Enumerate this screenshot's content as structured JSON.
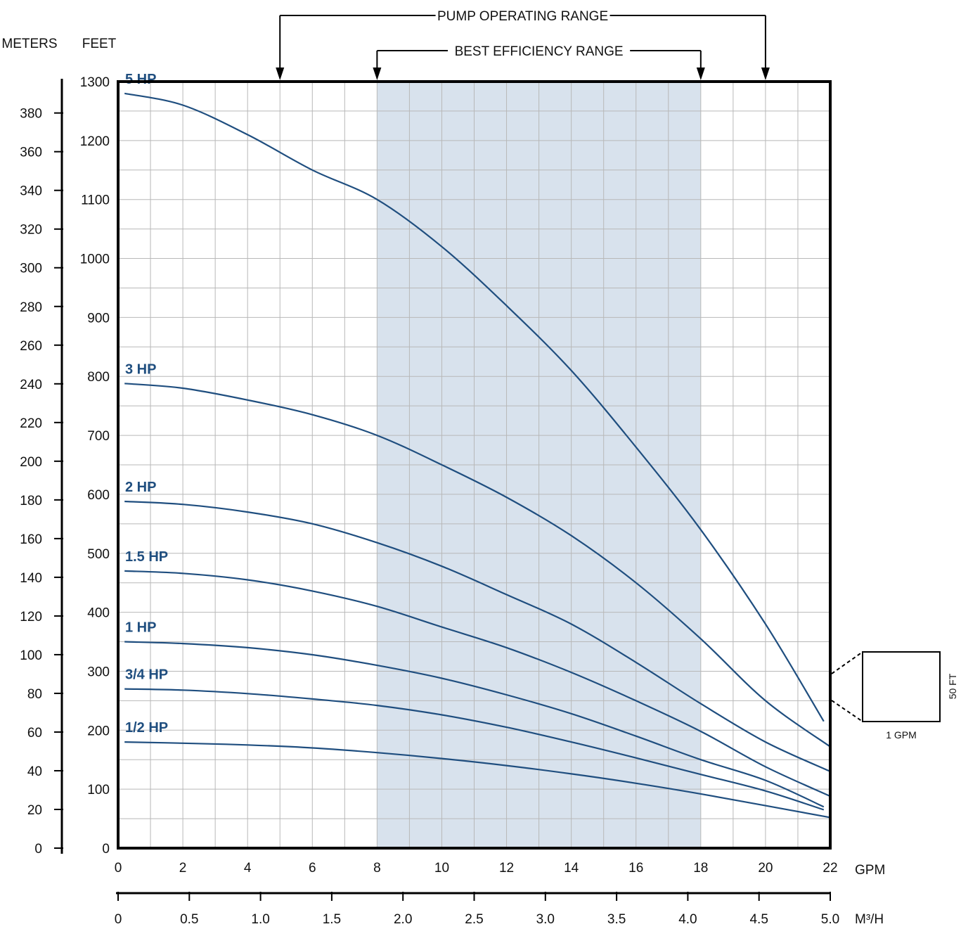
{
  "chart_data": {
    "type": "line",
    "x_unit": "GPM",
    "x2_unit": "M³/H",
    "y_unit": "FEET",
    "y2_unit": "METERS",
    "xlim": [
      0,
      22
    ],
    "ylim": [
      0,
      1300
    ],
    "x_ticks": [
      0,
      2,
      4,
      6,
      8,
      10,
      12,
      14,
      16,
      18,
      20,
      22
    ],
    "x_tick_labels": [
      "0",
      "2",
      "4",
      "6",
      "8",
      "10",
      "12",
      "14",
      "16",
      "18",
      "20",
      "22"
    ],
    "x2_ticks": [
      0,
      0.5,
      1.0,
      1.5,
      2.0,
      2.5,
      3.0,
      3.5,
      4.0,
      4.5,
      5.0
    ],
    "x2_tick_labels": [
      "0",
      "0.5",
      "1.0",
      "1.5",
      "2.0",
      "2.5",
      "3.0",
      "3.5",
      "4.0",
      "4.5",
      "5.0"
    ],
    "y_ticks": [
      0,
      100,
      200,
      300,
      400,
      500,
      600,
      700,
      800,
      900,
      1000,
      1100,
      1200,
      1300
    ],
    "y_tick_labels": [
      "0",
      "100",
      "200",
      "300",
      "400",
      "500",
      "600",
      "700",
      "800",
      "900",
      "1000",
      "1100",
      "1200",
      "1300"
    ],
    "y2_ticks": [
      0,
      20,
      40,
      60,
      80,
      100,
      120,
      140,
      160,
      180,
      200,
      220,
      240,
      260,
      280,
      300,
      320,
      340,
      360,
      380
    ],
    "y2_tick_labels": [
      "0",
      "20",
      "40",
      "60",
      "80",
      "100",
      "120",
      "140",
      "160",
      "180",
      "200",
      "220",
      "240",
      "260",
      "280",
      "300",
      "320",
      "340",
      "360",
      "380"
    ],
    "grid": true,
    "grid_minor_x": 1,
    "grid_minor_y": 50,
    "curve_color": "#1f4e7f",
    "label_color": "#1f4e7f",
    "highlight_color": "#d8e2ed",
    "ranges": [
      {
        "label": "PUMP OPERATING RANGE",
        "from": 5,
        "to": 20
      },
      {
        "label": "BEST EFFICIENCY RANGE",
        "from": 8,
        "to": 18
      }
    ],
    "highlight_range": [
      8,
      18
    ],
    "series": [
      {
        "name": "5 HP",
        "x": [
          0.2,
          2,
          4,
          6,
          8,
          10,
          12,
          14,
          16,
          18,
          20,
          21.8
        ],
        "y": [
          1280,
          1260,
          1210,
          1150,
          1100,
          1020,
          920,
          810,
          680,
          540,
          380,
          215
        ]
      },
      {
        "name": "3 HP",
        "x": [
          0.2,
          2,
          4,
          6,
          8,
          10,
          12,
          14,
          16,
          18,
          20,
          22
        ],
        "y": [
          788,
          780,
          760,
          735,
          700,
          650,
          595,
          530,
          450,
          355,
          250,
          172
        ]
      },
      {
        "name": "2 HP",
        "x": [
          0.2,
          2,
          4,
          6,
          8,
          10,
          12,
          14,
          16,
          18,
          20,
          22
        ],
        "y": [
          588,
          583,
          570,
          550,
          518,
          478,
          430,
          380,
          315,
          245,
          180,
          130
        ]
      },
      {
        "name": "1.5 HP",
        "x": [
          0.2,
          2,
          4,
          6,
          8,
          10,
          12,
          14,
          16,
          18,
          20,
          22
        ],
        "y": [
          470,
          466,
          455,
          436,
          410,
          375,
          340,
          298,
          250,
          198,
          138,
          88
        ]
      },
      {
        "name": "1 HP",
        "x": [
          0.2,
          2,
          4,
          6,
          8,
          10,
          12,
          14,
          16,
          18,
          20,
          21.8
        ],
        "y": [
          350,
          347,
          340,
          328,
          310,
          288,
          260,
          228,
          190,
          150,
          115,
          70
        ]
      },
      {
        "name": "3/4 HP",
        "x": [
          0.2,
          2,
          4,
          6,
          8,
          10,
          12,
          14,
          16,
          18,
          20,
          21.8
        ],
        "y": [
          270,
          268,
          262,
          253,
          242,
          226,
          205,
          180,
          153,
          125,
          97,
          65
        ]
      },
      {
        "name": "1/2 HP",
        "x": [
          0.2,
          2,
          4,
          6,
          8,
          10,
          12,
          14,
          16,
          18,
          20,
          22
        ],
        "y": [
          180,
          178,
          175,
          170,
          162,
          152,
          140,
          126,
          110,
          92,
          72,
          52
        ]
      }
    ],
    "scale_box": {
      "width_label": "1 GPM",
      "height_label": "50 FT"
    }
  }
}
